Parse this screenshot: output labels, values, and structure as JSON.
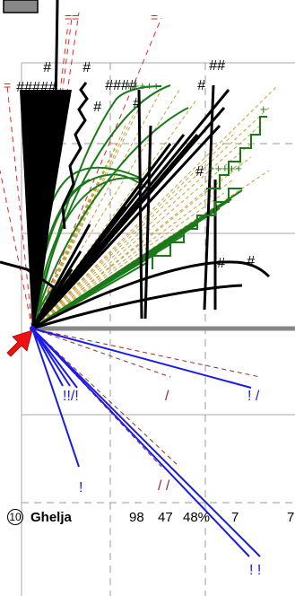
{
  "colors": {
    "black": "#000000",
    "green": "#1a7a1a",
    "blue": "#1a1aee",
    "red_dashed": "#ee2222",
    "brown_dashed": "#9b2a2a",
    "gold": "#c8a13a",
    "separator": "#888888",
    "grid": "#999999",
    "pointer": "#ee1111"
  },
  "markers": {
    "hash": "#",
    "hashes": "##",
    "hash_run": "#####",
    "hash_run_short": "####",
    "slash": "/",
    "slashes": "/ /",
    "triple_slash": "///",
    "bang": "!",
    "bangs": "! !",
    "bang_slash": "! /",
    "bang_slash_run": "!!/!",
    "plus_run": "+++++",
    "plus": "+",
    "equals": "=",
    "equals_run": "=="
  },
  "icons": [
    "pointer-arrow-icon"
  ],
  "stat_row": {
    "rank": "10",
    "name": "Ghelja",
    "values": [
      "98",
      "47",
      "48%",
      "7",
      "7"
    ]
  }
}
